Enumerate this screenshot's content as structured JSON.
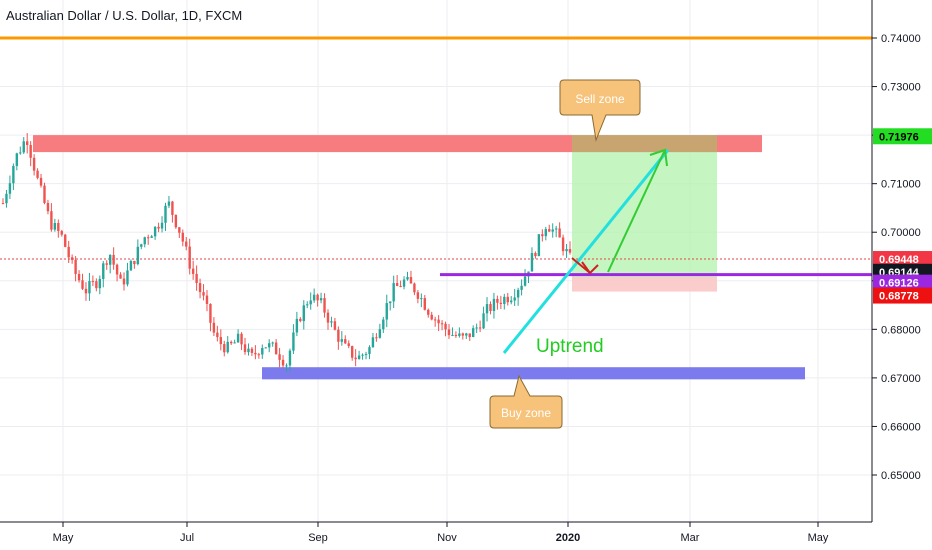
{
  "chart_data": {
    "type": "candlestick",
    "title": "Australian Dollar / U.S. Dollar, 1D, FXCM",
    "y_ticks": [
      "0.74000",
      "0.73000",
      "0.72000",
      "0.71000",
      "0.70000",
      "0.69000",
      "0.68000",
      "0.67000",
      "0.66000",
      "0.65000"
    ],
    "x_ticks": [
      "May",
      "Jul",
      "Sep",
      "Nov",
      "2020",
      "Mar",
      "May"
    ],
    "ylim": [
      0.6425,
      0.7475
    ],
    "grid": true,
    "price_labels": [
      {
        "value": "0.71976",
        "price": 0.71976,
        "bg": "#22dd22",
        "fg": "#000000"
      },
      {
        "value": "0.69448",
        "price": 0.69448,
        "bg": "#f23645",
        "fg": "#ffffff"
      },
      {
        "value": "0.69144",
        "price": 0.69144,
        "bg": "#131722",
        "fg": "#ffffff"
      },
      {
        "value": "0.69126",
        "price": 0.69126,
        "bg": "#9c27e0",
        "fg": "#ffffff"
      },
      {
        "value": "0.68778",
        "price": 0.68778,
        "bg": "#ee1111",
        "fg": "#ffffff"
      }
    ],
    "annotations": {
      "sell_zone": "Sell zone",
      "buy_zone": "Buy zone",
      "uptrend": "Uptrend"
    },
    "levels": {
      "resistance_line": 0.74,
      "dotted_price": 0.69448,
      "purple_line": 0.69126,
      "sell_band": [
        0.7165,
        0.72
      ],
      "buy_band": [
        0.6697,
        0.6722
      ],
      "target": 0.71976,
      "stop": 0.68778
    },
    "colors": {
      "up": "#26a69a",
      "down": "#ef5350",
      "orange": "#ff9800",
      "sell_band": "#f77c80",
      "buy_band": "#7b7bee",
      "purple": "#9c27e0",
      "trend": "#22e0e0",
      "arrow": "#33cc33"
    },
    "price_path": [
      [
        0.706,
        "Apr"
      ],
      [
        0.715,
        "Apr"
      ],
      [
        0.7197,
        "Apr"
      ],
      [
        0.71,
        "Apr"
      ],
      [
        0.702,
        "May"
      ],
      [
        0.699,
        "May"
      ],
      [
        0.692,
        "May"
      ],
      [
        0.688,
        "May"
      ],
      [
        0.69,
        "May"
      ],
      [
        0.696,
        "Jun"
      ],
      [
        0.689,
        "Jun"
      ],
      [
        0.694,
        "Jun"
      ],
      [
        0.699,
        "Jun"
      ],
      [
        0.701,
        "Jun"
      ],
      [
        0.706,
        "Jul"
      ],
      [
        0.7,
        "Jul"
      ],
      [
        0.692,
        "Jul"
      ],
      [
        0.686,
        "Jul"
      ],
      [
        0.678,
        "Jul"
      ],
      [
        0.676,
        "Aug"
      ],
      [
        0.678,
        "Aug"
      ],
      [
        0.674,
        "Aug"
      ],
      [
        0.677,
        "Aug"
      ],
      [
        0.676,
        "Aug"
      ],
      [
        0.673,
        "Sep"
      ],
      [
        0.682,
        "Sep"
      ],
      [
        0.687,
        "Sep"
      ],
      [
        0.685,
        "Sep"
      ],
      [
        0.68,
        "Oct"
      ],
      [
        0.676,
        "Oct"
      ],
      [
        0.674,
        "Oct"
      ],
      [
        0.676,
        "Oct"
      ],
      [
        0.682,
        "Oct"
      ],
      [
        0.688,
        "Oct"
      ],
      [
        0.69,
        "Nov"
      ],
      [
        0.688,
        "Nov"
      ],
      [
        0.684,
        "Nov"
      ],
      [
        0.681,
        "Nov"
      ],
      [
        0.679,
        "Nov"
      ],
      [
        0.678,
        "Nov"
      ],
      [
        0.68,
        "Dec"
      ],
      [
        0.684,
        "Dec"
      ],
      [
        0.686,
        "Dec"
      ],
      [
        0.687,
        "Dec"
      ],
      [
        0.69,
        "Dec"
      ],
      [
        0.696,
        "Dec"
      ],
      [
        0.702,
        "Dec"
      ],
      [
        0.699,
        "Jan"
      ],
      [
        0.6945,
        "Jan"
      ]
    ]
  }
}
